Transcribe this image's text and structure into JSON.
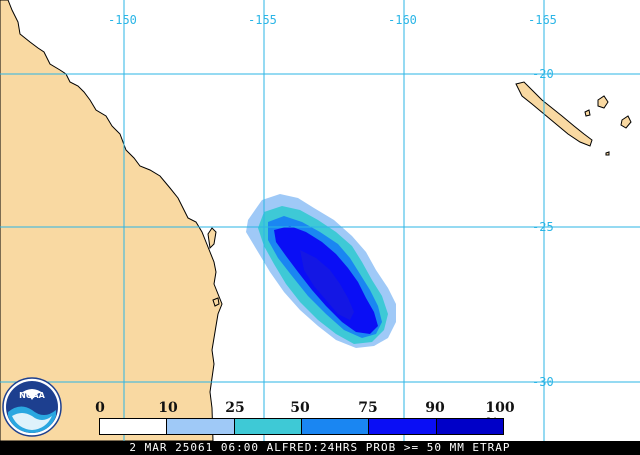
{
  "map": {
    "longitudes": [
      "-150",
      "-155",
      "-160",
      "-165"
    ],
    "latitudes": [
      "-20",
      "-25",
      "-30"
    ],
    "colors": {
      "ocean": "#ffffff",
      "land": "#f9d9a2",
      "coastline": "#000000",
      "grid": "#2bb5e6"
    },
    "probability_contours": [
      {
        "level": 10,
        "color": "#9fc9f7"
      },
      {
        "level": 25,
        "color": "#3ec9d6"
      },
      {
        "level": 50,
        "color": "#1a86f2"
      },
      {
        "level": 75,
        "color": "#0a0ef5"
      }
    ]
  },
  "legend": {
    "ticks": [
      "0",
      "10",
      "25",
      "50",
      "75",
      "90",
      "100 %"
    ],
    "swatch_colors": [
      "#ffffff",
      "#9fc9f7",
      "#3ec9d6",
      "#1a86f2",
      "#0a0ef5",
      "#0000c8"
    ]
  },
  "caption": "2 MAR 25061 06:00 ALFRED:24HRS PROB >= 50 MM ETRAP",
  "logo": {
    "text": "NOAA",
    "icon": "noaa-logo-icon"
  }
}
